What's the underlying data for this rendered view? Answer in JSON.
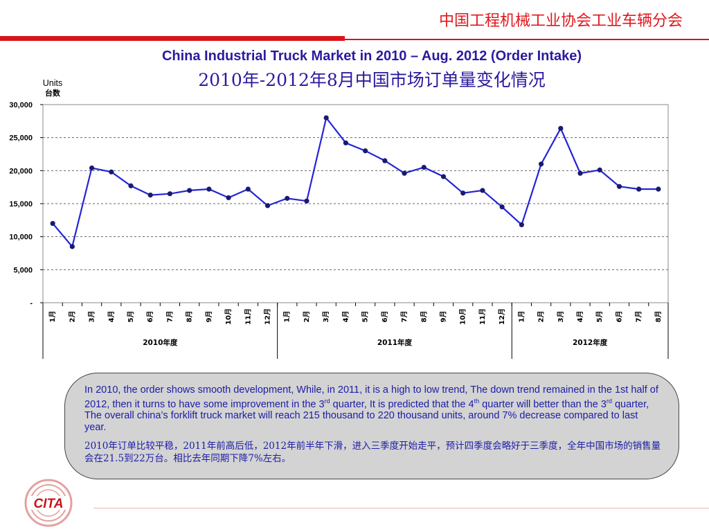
{
  "header": {
    "org_name": "中国工程机械工业协会工业车辆分会",
    "title_en": "China Industrial Truck Market in 2010 – Aug. 2012 (Order Intake)",
    "title_cn": "2010年-2012年8月中国市场订单量变化情况"
  },
  "chart_data": {
    "type": "line",
    "ylabel": "Units",
    "ylabel_cn": "台数",
    "ylim": [
      0,
      30000
    ],
    "yticks": [
      0,
      5000,
      10000,
      15000,
      20000,
      25000,
      30000
    ],
    "ytick_labels": [
      "-",
      "5,000",
      "10,000",
      "15,000",
      "20,000",
      "25,000",
      "30,000"
    ],
    "grid": "horizontal dashed",
    "categories": [
      "1月",
      "2月",
      "3月",
      "4月",
      "5月",
      "6月",
      "7月",
      "8月",
      "9月",
      "10月",
      "11月",
      "12月",
      "1月",
      "2月",
      "3月",
      "4月",
      "5月",
      "6月",
      "7月",
      "8月",
      "9月",
      "10月",
      "11月",
      "12月",
      "1月",
      "2月",
      "3月",
      "4月",
      "5月",
      "6月",
      "7月",
      "8月"
    ],
    "groups": [
      {
        "label": "2010年度",
        "count": 12
      },
      {
        "label": "2011年度",
        "count": 12
      },
      {
        "label": "2012年度",
        "count": 8
      }
    ],
    "series": [
      {
        "color": "#2424d8",
        "values": [
          12000,
          8500,
          20400,
          19800,
          17700,
          16300,
          16500,
          17000,
          17200,
          15900,
          17200,
          14700,
          15800,
          15400,
          28000,
          24200,
          23000,
          21500,
          19600,
          20500,
          19100,
          16600,
          17000,
          14500,
          11800,
          21000,
          26400,
          19600,
          20100,
          17600,
          17200,
          17200
        ]
      }
    ]
  },
  "note": {
    "en": "In 2010, the order shows smooth development,  While, in 2011, it is a high to low trend, The down trend remained in the 1st half of 2012, then it turns to  have some improvement in the 3rd quarter, It is predicted that the 4th quarter will better than the 3rd quarter,  The overall china’s forklift truck market will reach 215 thousand to 220 thousand units, around 7% decrease compared to last year.",
    "cn": "2010年订单比较平稳，2011年前高后低，2012年前半年下滑，进入三季度开始走平，预计四季度会略好于三季度，全年中国市场的销售量会在21.5到22万台。相比去年同期下降7%左右。"
  },
  "logo": {
    "text": "CITA"
  },
  "colors": {
    "brand_red": "#d9141b",
    "title_blue": "#2a1a9e",
    "line_blue": "#2424d8",
    "marker_navy": "#1a1a70"
  }
}
